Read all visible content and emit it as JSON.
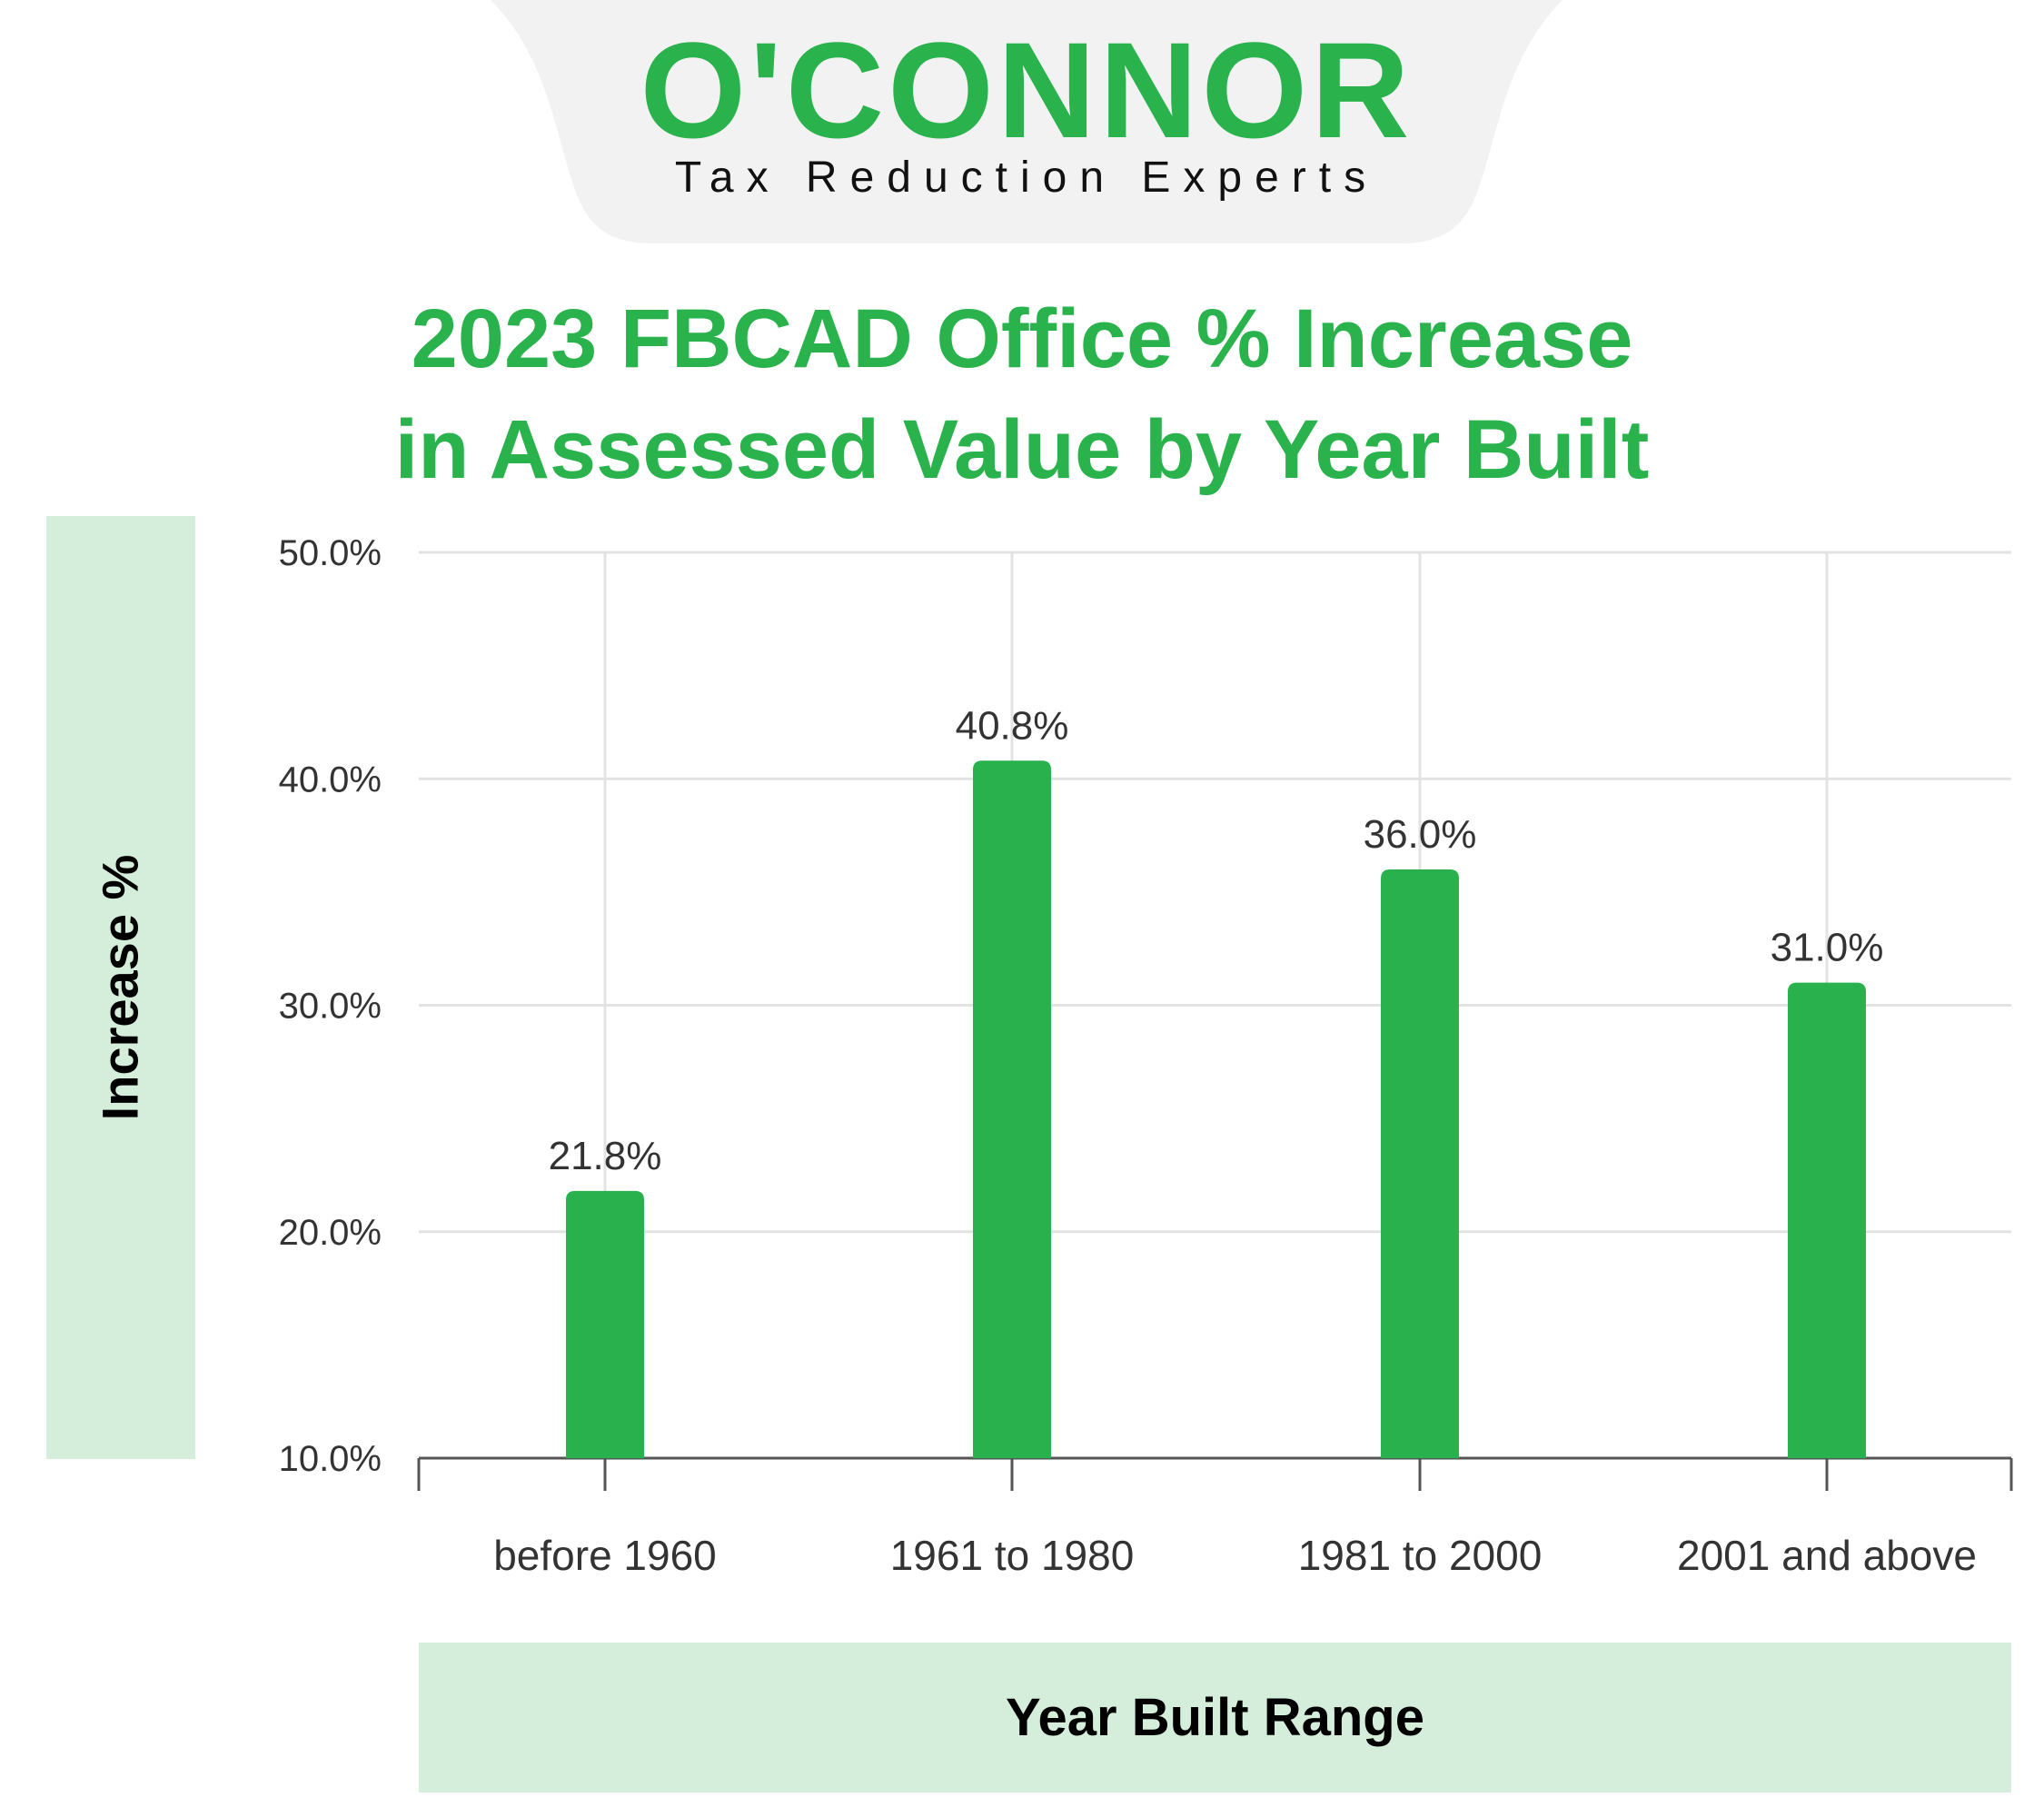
{
  "logo": {
    "brand": "O'CONNOR",
    "tagline": "Tax Reduction Experts",
    "brand_color": "#2ab24d",
    "tab_color": "#f2f2f2"
  },
  "chart_data": {
    "type": "bar",
    "title_line1": "2023 FBCAD Office % Increase",
    "title_line2": "in Assessed Value by Year Built",
    "xlabel": "Year Built Range",
    "ylabel": "Increase %",
    "categories": [
      "before 1960",
      "1961 to 1980",
      "1981 to 2000",
      "2001 and above"
    ],
    "values": [
      21.8,
      40.8,
      36.0,
      31.0
    ],
    "value_labels": [
      "21.8%",
      "40.8%",
      "36.0%",
      "31.0%"
    ],
    "ylim": [
      10,
      50
    ],
    "yticks": [
      10,
      20,
      30,
      40,
      50
    ],
    "ytick_labels": [
      "10.0%",
      "20.0%",
      "30.0%",
      "40.0%",
      "50.0%"
    ],
    "grid": true,
    "bar_color": "#28b14c",
    "grid_color": "#e3e3e3",
    "axis_color": "#555555"
  }
}
